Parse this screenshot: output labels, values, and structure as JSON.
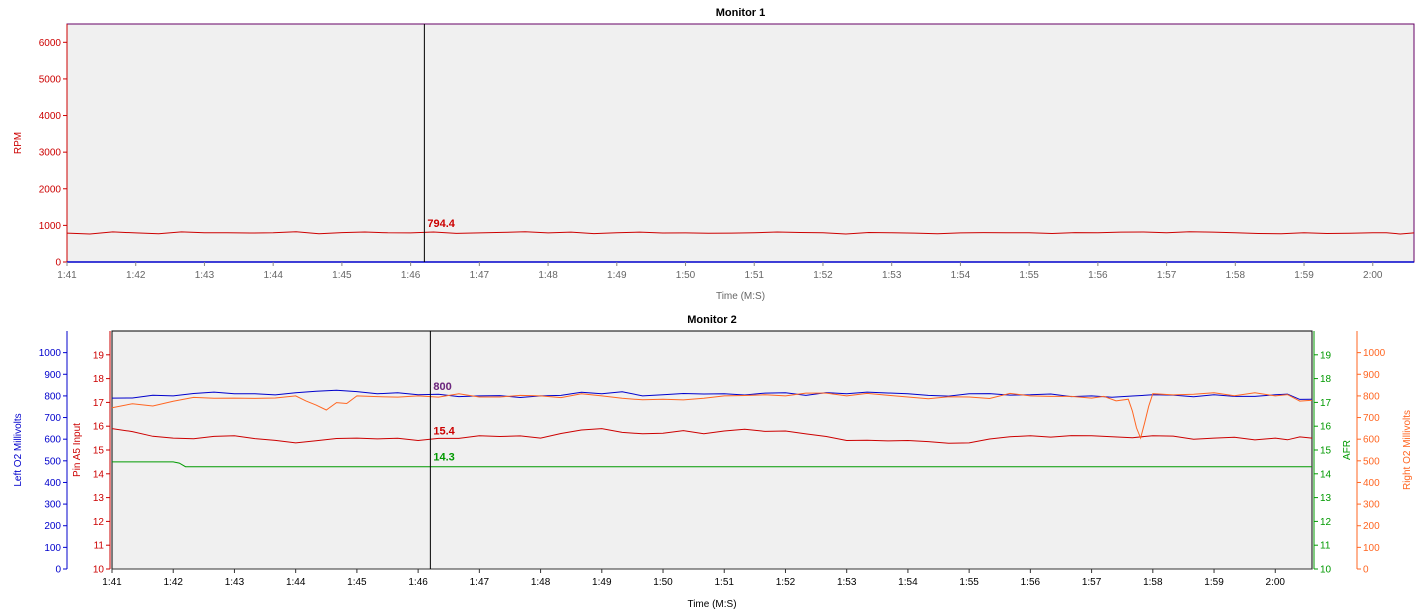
{
  "colors": {
    "rpm": "#cc0000",
    "left_o2": "#0000cc",
    "pin_a5": "#cc0000",
    "afr": "#009900",
    "right_o2": "#ff6622",
    "plot_bg": "#f0f0f0",
    "frame": "#660066",
    "x_axis_text": "#666666",
    "cursor": "#000000"
  },
  "chart_data": [
    {
      "type": "line",
      "title": "Monitor 1",
      "xlabel": "Time (M:S)",
      "ylabel": "RPM",
      "x_ticks": [
        "1:41",
        "1:42",
        "1:43",
        "1:44",
        "1:45",
        "1:46",
        "1:47",
        "1:48",
        "1:49",
        "1:50",
        "1:51",
        "1:52",
        "1:53",
        "1:54",
        "1:55",
        "1:56",
        "1:57",
        "1:58",
        "1:59",
        "2:00"
      ],
      "xlim": [
        "1:41",
        "2:00.6"
      ],
      "ylim": [
        0,
        6500
      ],
      "y_ticks": [
        0,
        1000,
        2000,
        3000,
        4000,
        5000,
        6000
      ],
      "grid": false,
      "cursor": {
        "x": "1:46.2",
        "label": "794.4"
      },
      "series": [
        {
          "name": "RPM",
          "x": [
            "1:41",
            "1:42",
            "1:43",
            "1:44",
            "1:45",
            "1:46",
            "1:47",
            "1:48",
            "1:49",
            "1:50",
            "1:51",
            "1:52",
            "1:53",
            "1:54",
            "1:55",
            "1:56",
            "1:57",
            "1:58",
            "1:59",
            "2:00",
            "2:00.6"
          ],
          "values": [
            790,
            795,
            800,
            798,
            802,
            794,
            796,
            795,
            797,
            796,
            798,
            799,
            797,
            796,
            798,
            797,
            798,
            797,
            798,
            797,
            796
          ]
        }
      ]
    },
    {
      "type": "line",
      "title": "Monitor 2",
      "xlabel": "Time (M:S)",
      "x_ticks": [
        "1:41",
        "1:42",
        "1:43",
        "1:44",
        "1:45",
        "1:46",
        "1:47",
        "1:48",
        "1:49",
        "1:50",
        "1:51",
        "1:52",
        "1:53",
        "1:54",
        "1:55",
        "1:56",
        "1:57",
        "1:58",
        "1:59",
        "2:00"
      ],
      "xlim": [
        "1:41",
        "2:00.6"
      ],
      "grid": false,
      "axes": [
        {
          "id": "left_o2",
          "label": "Left O2 Millivolts",
          "side": "left",
          "ylim": [
            0,
            1100
          ],
          "ticks": [
            0,
            100,
            200,
            300,
            400,
            500,
            600,
            700,
            800,
            900,
            1000
          ]
        },
        {
          "id": "pin_a5",
          "label": "Pin A5 Input",
          "side": "left",
          "ylim": [
            10,
            20
          ],
          "ticks": [
            10,
            11,
            12,
            13,
            14,
            15,
            16,
            17,
            18,
            19
          ]
        },
        {
          "id": "afr",
          "label": "AFR",
          "side": "right",
          "ylim": [
            10,
            20
          ],
          "ticks": [
            10,
            11,
            12,
            13,
            14,
            15,
            16,
            17,
            18,
            19
          ]
        },
        {
          "id": "right_o2",
          "label": "Right O2 Millivolts",
          "side": "right",
          "ylim": [
            0,
            1100
          ],
          "ticks": [
            0,
            100,
            200,
            300,
            400,
            500,
            600,
            700,
            800,
            900,
            1000
          ]
        }
      ],
      "cursor": {
        "x": "1:46.2",
        "labels": [
          {
            "axis": "right_o2",
            "value": 800,
            "text": "800"
          },
          {
            "axis": "left_o2",
            "value": 800,
            "text": "800"
          },
          {
            "axis": "pin_a5",
            "value": 15.4,
            "text": "15.4"
          },
          {
            "axis": "afr",
            "value": 14.3,
            "text": "14.3"
          }
        ]
      },
      "series": [
        {
          "name": "Left O2 Millivolts",
          "axis": "left_o2",
          "x": [
            "1:41",
            "1:42",
            "1:43",
            "1:44",
            "1:45",
            "1:46",
            "1:47",
            "1:48",
            "1:49",
            "1:50",
            "1:51",
            "1:52",
            "1:53",
            "1:54",
            "1:55",
            "1:56",
            "1:57",
            "1:58",
            "1:59",
            "2:00",
            "2:00.6"
          ],
          "values": [
            790,
            800,
            810,
            815,
            820,
            805,
            800,
            800,
            810,
            805,
            810,
            815,
            810,
            810,
            810,
            805,
            800,
            805,
            805,
            805,
            785
          ]
        },
        {
          "name": "Pin A5 Input",
          "axis": "pin_a5",
          "x": [
            "1:41",
            "1:42",
            "1:43",
            "1:44",
            "1:45",
            "1:46",
            "1:47",
            "1:48",
            "1:49",
            "1:50",
            "1:51",
            "1:52",
            "1:53",
            "1:54",
            "1:55",
            "1:56",
            "1:57",
            "1:58",
            "1:59",
            "2:00",
            "2:00.6"
          ],
          "values": [
            15.9,
            15.5,
            15.6,
            15.3,
            15.5,
            15.4,
            15.6,
            15.5,
            15.9,
            15.7,
            15.8,
            15.8,
            15.4,
            15.4,
            15.3,
            15.6,
            15.6,
            15.6,
            15.5,
            15.5,
            15.5
          ]
        },
        {
          "name": "AFR",
          "axis": "afr",
          "x": [
            "1:41",
            "1:42",
            "1:42.1",
            "1:42.2",
            "1:43",
            "1:44",
            "1:45",
            "1:46",
            "1:47",
            "1:48",
            "1:49",
            "1:50",
            "1:51",
            "1:52",
            "1:53",
            "1:54",
            "1:55",
            "1:56",
            "1:57",
            "1:58",
            "1:59",
            "2:00",
            "2:00.6"
          ],
          "values": [
            14.5,
            14.5,
            14.45,
            14.3,
            14.3,
            14.3,
            14.3,
            14.3,
            14.3,
            14.3,
            14.3,
            14.3,
            14.3,
            14.3,
            14.3,
            14.3,
            14.3,
            14.3,
            14.3,
            14.3,
            14.3,
            14.3,
            14.3
          ]
        },
        {
          "name": "Right O2 Millivolts",
          "axis": "right_o2",
          "x": [
            "1:41",
            "1:42",
            "1:43",
            "1:44",
            "1:44.5",
            "1:45",
            "1:46",
            "1:47",
            "1:48",
            "1:49",
            "1:50",
            "1:51",
            "1:52",
            "1:53",
            "1:54",
            "1:55",
            "1:56",
            "1:57",
            "1:57.6",
            "1:57.8",
            "1:58",
            "1:59",
            "2:00",
            "2:00.6"
          ],
          "values": [
            745,
            775,
            790,
            800,
            735,
            800,
            800,
            795,
            800,
            800,
            785,
            800,
            800,
            800,
            795,
            795,
            800,
            790,
            785,
            605,
            810,
            815,
            800,
            780
          ]
        }
      ]
    }
  ]
}
